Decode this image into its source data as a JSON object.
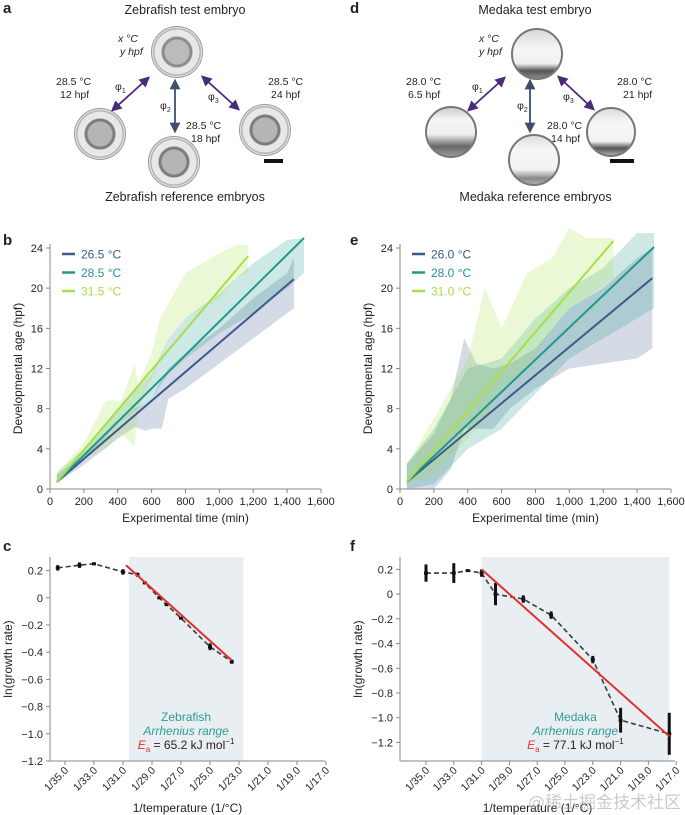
{
  "panels": {
    "a": {
      "label": "a",
      "title": "Zebrafish test embryo",
      "subtitle": "Zebrafish reference embryos",
      "test_temp": "x °C",
      "test_age": "y hpf",
      "references": [
        {
          "temp": "28.5 °C",
          "age": "12 hpf",
          "phi": "φ",
          "phi_sub": "1"
        },
        {
          "temp": "28.5 °C",
          "age": "18 hpf",
          "phi": "φ",
          "phi_sub": "2"
        },
        {
          "temp": "28.5 °C",
          "age": "24 hpf",
          "phi": "φ",
          "phi_sub": "3"
        }
      ]
    },
    "d": {
      "label": "d",
      "title": "Medaka test embryo",
      "subtitle": "Medaka reference embryos",
      "test_temp": "x °C",
      "test_age": "y hpf",
      "references": [
        {
          "temp": "28.0 °C",
          "age": "6.5 hpf",
          "phi": "φ",
          "phi_sub": "1"
        },
        {
          "temp": "28.0 °C",
          "age": "14 hpf",
          "phi": "φ",
          "phi_sub": "2"
        },
        {
          "temp": "28.0 °C",
          "age": "21 hpf",
          "phi": "φ",
          "phi_sub": "3"
        }
      ]
    }
  },
  "colors": {
    "cold": "#3d5a8c",
    "mid": "#22978a",
    "warm": "#a6e046",
    "fit": "#e0312f",
    "dashed": "#3a3a3a",
    "shade": "#e9eef3",
    "arrow_purple": "#4b2a79",
    "arrow_slate": "#3d4f6e",
    "teal_text": "#2e9c93"
  },
  "watermark": "@稀土掘金技术社区",
  "chart_data": [
    {
      "id": "b",
      "label": "b",
      "type": "line",
      "xlabel": "Experimental time (min)",
      "ylabel": "Developmental age (hpf)",
      "xlim": [
        0,
        1600
      ],
      "ylim": [
        0,
        24
      ],
      "xticks": [
        0,
        200,
        400,
        600,
        800,
        1000,
        1200,
        1400,
        1600
      ],
      "xtick_labels": [
        "0",
        "200",
        "400",
        "600",
        "800",
        "1,000",
        "1,200",
        "1,400",
        "1,600"
      ],
      "yticks": [
        0,
        4,
        8,
        12,
        16,
        20,
        24
      ],
      "legend_position": "top-left",
      "series": [
        {
          "name": "26.5 °C",
          "color_key": "cold",
          "x": [
            40,
            1440
          ],
          "y": [
            0.7,
            20.9
          ],
          "band": {
            "x": [
              40,
              200,
              400,
              500,
              560,
              600,
              660,
              700,
              800,
              1000,
              1200,
              1400,
              1440
            ],
            "lo": [
              0.6,
              2.4,
              5.0,
              6.2,
              5.8,
              6.0,
              6.0,
              9.0,
              10.0,
              12.5,
              15.0,
              17.5,
              18.0
            ],
            "hi": [
              1.4,
              3.4,
              6.5,
              8.0,
              8.5,
              9.0,
              11.0,
              12.0,
              13.5,
              16.0,
              19.0,
              21.5,
              23.0
            ]
          }
        },
        {
          "name": "28.5 °C",
          "color_key": "mid",
          "x": [
            40,
            1500
          ],
          "y": [
            0.7,
            25.0
          ],
          "band": {
            "x": [
              40,
              200,
              400,
              600,
              700,
              800,
              1000,
              1200,
              1400,
              1500
            ],
            "lo": [
              0.6,
              2.8,
              6.5,
              9.0,
              11.5,
              13.0,
              15.5,
              17.5,
              20.0,
              21.5
            ],
            "hi": [
              1.6,
              4.0,
              8.0,
              11.5,
              15.0,
              17.0,
              19.5,
              22.5,
              24.8,
              25.0
            ]
          }
        },
        {
          "name": "31.5 °C",
          "color_key": "warm",
          "x": [
            40,
            1170
          ],
          "y": [
            0.7,
            23.2
          ],
          "band": {
            "x": [
              40,
              200,
              330,
              420,
              500,
              520,
              600,
              650,
              700,
              800,
              900,
              1000,
              1100,
              1170
            ],
            "lo": [
              0.6,
              3.0,
              4.0,
              5.5,
              4.2,
              8.0,
              11.0,
              13.0,
              15.0,
              17.0,
              18.0,
              19.0,
              21.0,
              21.5
            ],
            "hi": [
              1.6,
              4.6,
              8.8,
              8.8,
              12.5,
              10.5,
              13.5,
              17.0,
              18.5,
              21.5,
              22.5,
              23.5,
              24.3,
              24.3
            ]
          }
        }
      ]
    },
    {
      "id": "e",
      "label": "e",
      "type": "line",
      "xlabel": "Experimental time (min)",
      "ylabel": "Developmental age (hpf)",
      "xlim": [
        0,
        1600
      ],
      "ylim": [
        0,
        24
      ],
      "xticks": [
        0,
        200,
        400,
        600,
        800,
        1000,
        1200,
        1400,
        1600
      ],
      "xtick_labels": [
        "0",
        "200",
        "400",
        "600",
        "800",
        "1,000",
        "1,200",
        "1,400",
        "1,600"
      ],
      "yticks": [
        0,
        4,
        8,
        12,
        16,
        20,
        24
      ],
      "legend_position": "top-left",
      "series": [
        {
          "name": "26.0 °C",
          "color_key": "cold",
          "x": [
            40,
            1490
          ],
          "y": [
            0.7,
            21.0
          ],
          "band": {
            "x": [
              40,
              200,
              300,
              380,
              450,
              550,
              650,
              800,
              900,
              1000,
              1200,
              1400,
              1490
            ],
            "lo": [
              0.0,
              0.0,
              2.0,
              6.0,
              6.0,
              6.0,
              8.0,
              10.0,
              11.0,
              12.0,
              12.5,
              13.0,
              14.0
            ],
            "hi": [
              2.5,
              5.5,
              9.0,
              15.0,
              12.5,
              12.0,
              12.5,
              14.0,
              16.0,
              18.0,
              20.0,
              23.0,
              24.0
            ]
          }
        },
        {
          "name": "28.0 °C",
          "color_key": "mid",
          "x": [
            40,
            1500
          ],
          "y": [
            0.7,
            24.1
          ],
          "band": {
            "x": [
              40,
              200,
              400,
              600,
              800,
              1000,
              1200,
              1400,
              1500
            ],
            "lo": [
              0.0,
              0.5,
              4.0,
              6.0,
              9.5,
              13.0,
              15.0,
              17.0,
              18.0
            ],
            "hi": [
              2.5,
              6.0,
              12.0,
              13.0,
              17.0,
              20.0,
              22.0,
              25.5,
              25.5
            ]
          }
        },
        {
          "name": "31.0 °C",
          "color_key": "warm",
          "x": [
            40,
            1260
          ],
          "y": [
            0.7,
            24.7
          ],
          "band": {
            "x": [
              40,
              200,
              400,
              500,
              600,
              750,
              900,
              1000,
              1100,
              1260
            ],
            "lo": [
              0.5,
              1.5,
              5.0,
              7.0,
              10.0,
              12.0,
              16.0,
              18.0,
              19.0,
              21.0
            ],
            "hi": [
              2.5,
              7.0,
              13.0,
              20.0,
              16.0,
              21.5,
              23.0,
              26.0,
              25.0,
              25.0
            ]
          }
        }
      ]
    },
    {
      "id": "c",
      "label": "c",
      "type": "scatter",
      "xlabel": "1/temperature (1/°C)",
      "ylabel": "ln(growth rate)",
      "x_domain_temperature_C": [
        36.0,
        17.0
      ],
      "xtick_temps": [
        35,
        33,
        31,
        29,
        27,
        25,
        23,
        21,
        19,
        17
      ],
      "xtick_labels": [
        "1/35.0",
        "1/33.0",
        "1/31.0",
        "1/29.0",
        "1/27.0",
        "1/25.0",
        "1/23.0",
        "1/21.0",
        "1/19.0",
        "1/17.0"
      ],
      "ylim": [
        -1.2,
        0.3
      ],
      "yticks": [
        0.2,
        0,
        -0.2,
        -0.4,
        -0.6,
        -0.8,
        -1.0,
        -1.2
      ],
      "ytick_labels": [
        "0.2",
        "0",
        "−0.2",
        "−0.4",
        "−0.6",
        "−0.8",
        "−1.0",
        "−1.2"
      ],
      "shaded_range_temperature_C": [
        30.6,
        22.7
      ],
      "annotation": {
        "species": "Zebrafish",
        "range": "Arrhenius range",
        "ea_symbol": "E",
        "ea_sub": "a",
        "ea_value": " = 65.2 kJ mol",
        "ea_unit_sup": "−1"
      },
      "points": [
        {
          "temp": 35.5,
          "y": 0.22,
          "err": 0.02
        },
        {
          "temp": 34.0,
          "y": 0.24,
          "err": 0.02
        },
        {
          "temp": 33.0,
          "y": 0.25,
          "err": 0.01
        },
        {
          "temp": 31.0,
          "y": 0.19,
          "err": 0.02
        },
        {
          "temp": 30.0,
          "y": 0.17,
          "err": 0.015
        },
        {
          "temp": 29.5,
          "y": 0.11,
          "err": 0.01
        },
        {
          "temp": 28.5,
          "y": 0.0,
          "err": 0.01
        },
        {
          "temp": 28.0,
          "y": -0.05,
          "err": 0.01
        },
        {
          "temp": 27.0,
          "y": -0.15,
          "err": 0.01
        },
        {
          "temp": 25.0,
          "y": -0.36,
          "err": 0.025
        },
        {
          "temp": 23.5,
          "y": -0.47,
          "err": 0.015
        }
      ],
      "fit": {
        "temp": [
          30.8,
          23.5
        ],
        "y": [
          0.24,
          -0.46
        ]
      }
    },
    {
      "id": "f",
      "label": "f",
      "type": "scatter",
      "xlabel": "1/temperature (1/°C)",
      "ylabel": "ln(growth rate)",
      "x_domain_temperature_C": [
        37.0,
        16.0
      ],
      "xtick_temps": [
        35,
        33,
        31,
        29,
        27,
        25,
        23,
        21,
        19,
        17
      ],
      "xtick_labels": [
        "1/35.0",
        "1/33.0",
        "1/31.0",
        "1/29.0",
        "1/27.0",
        "1/25.0",
        "1/23.0",
        "1/21.0",
        "1/19.0",
        "1/17.0"
      ],
      "ylim": [
        -1.35,
        0.3
      ],
      "yticks": [
        0.2,
        0,
        -0.2,
        -0.4,
        -0.6,
        -0.8,
        -1.0,
        -1.2
      ],
      "ytick_labels": [
        "0.2",
        "0",
        "−0.2",
        "−0.4",
        "−0.6",
        "−0.8",
        "−1.0",
        "−1.2"
      ],
      "shaded_range_temperature_C": [
        31.0,
        17.5
      ],
      "annotation": {
        "species": "Medaka",
        "range": "Arrhenius range",
        "ea_symbol": "E",
        "ea_sub": "a",
        "ea_value": " = 77.1 kJ mol",
        "ea_unit_sup": "−1"
      },
      "points": [
        {
          "temp": 35.0,
          "y": 0.17,
          "err": 0.07
        },
        {
          "temp": 33.0,
          "y": 0.17,
          "err": 0.08
        },
        {
          "temp": 32.0,
          "y": 0.19,
          "err": 0.01
        },
        {
          "temp": 31.0,
          "y": 0.17,
          "err": 0.03
        },
        {
          "temp": 30.0,
          "y": 0.0,
          "err": 0.09
        },
        {
          "temp": 28.0,
          "y": -0.04,
          "err": 0.03
        },
        {
          "temp": 26.0,
          "y": -0.17,
          "err": 0.03
        },
        {
          "temp": 23.0,
          "y": -0.53,
          "err": 0.03
        },
        {
          "temp": 21.0,
          "y": -1.02,
          "err": 0.1
        },
        {
          "temp": 17.5,
          "y": -1.13,
          "err": 0.17
        }
      ],
      "fit": {
        "temp": [
          31.0,
          17.5
        ],
        "y": [
          0.2,
          -1.15
        ]
      }
    }
  ]
}
